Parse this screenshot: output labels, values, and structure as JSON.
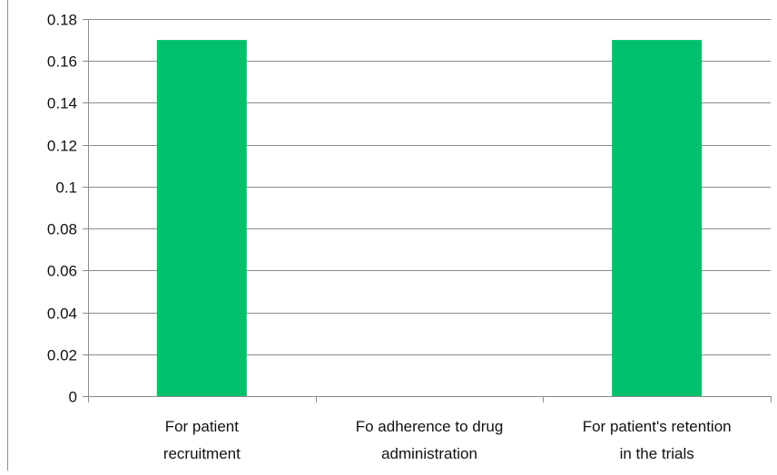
{
  "chart_data": {
    "type": "bar",
    "categories": [
      [
        "For patient",
        "recruitment"
      ],
      [
        "Fo adherence to drug",
        "administration"
      ],
      [
        "For patient's retention",
        "in the trials"
      ]
    ],
    "values": [
      0.17,
      0,
      0.17
    ],
    "ylim": [
      0,
      0.18
    ],
    "y_ticks": [
      "0",
      "0.02",
      "0.04",
      "0.06",
      "0.08",
      "0.1",
      "0.12",
      "0.14",
      "0.16",
      "0.18"
    ],
    "grid": true,
    "legend": "none",
    "title": "",
    "xlabel": "",
    "ylabel": ""
  },
  "colors": {
    "bar": "#00c06c",
    "gridline": "#8c8c8c",
    "axis": "#8c8c8c",
    "text": "#111111"
  }
}
